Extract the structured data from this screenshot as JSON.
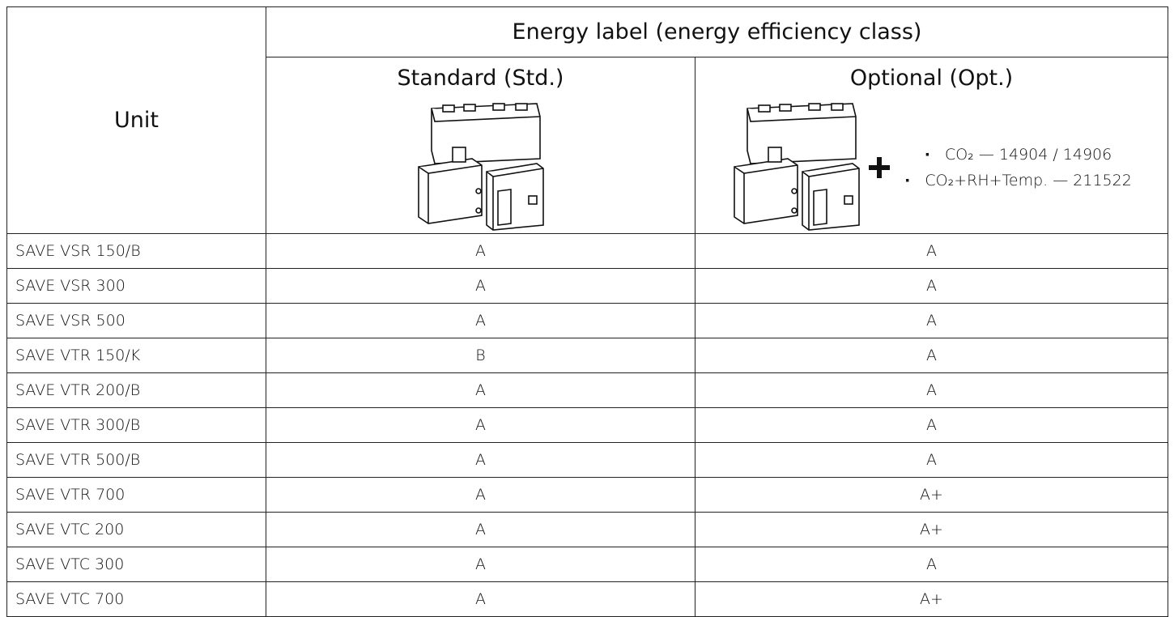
{
  "table": {
    "header": {
      "unit": "Unit",
      "group": "Energy label (energy efficiency class)",
      "standard": "Standard (Std.)",
      "optional": "Optional (Opt.)",
      "optional_accessories": [
        "CO₂ — 14904 / 14906",
        "CO₂+RH+Temp. — 211522"
      ]
    },
    "rows": [
      [
        "SAVE VSR 150/B",
        "A",
        "A"
      ],
      [
        "SAVE VSR 300",
        "A",
        "A"
      ],
      [
        "SAVE VSR 500",
        "A",
        "A"
      ],
      [
        "SAVE VTR 150/K",
        "B",
        "A"
      ],
      [
        "SAVE VTR 200/B",
        "A",
        "A"
      ],
      [
        "SAVE VTR 300/B",
        "A",
        "A"
      ],
      [
        "SAVE VTR 500/B",
        "A",
        "A"
      ],
      [
        "SAVE VTR 700",
        "A",
        "A+"
      ],
      [
        "SAVE VTC 200",
        "A",
        "A+"
      ],
      [
        "SAVE VTC 300",
        "A",
        "A"
      ],
      [
        "SAVE VTC 700",
        "A",
        "A+"
      ]
    ]
  }
}
